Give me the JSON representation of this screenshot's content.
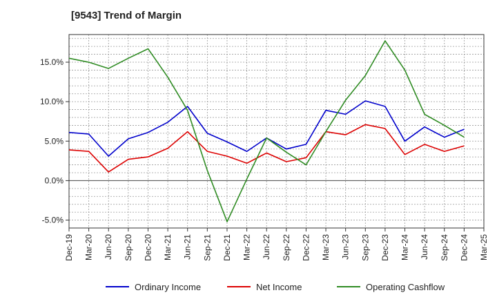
{
  "chart_data": {
    "type": "line",
    "title": "[9543]  Trend of Margin",
    "xlabel": "",
    "ylabel": "",
    "categories": [
      "Dec-19",
      "Mar-20",
      "Jun-20",
      "Sep-20",
      "Dec-20",
      "Mar-21",
      "Jun-21",
      "Sep-21",
      "Dec-21",
      "Mar-22",
      "Jun-22",
      "Sep-22",
      "Dec-22",
      "Mar-23",
      "Jun-23",
      "Sep-23",
      "Dec-23",
      "Mar-24",
      "Jun-24",
      "Sep-24",
      "Dec-24",
      "Mar-25"
    ],
    "y_ticks": [
      -5.0,
      0.0,
      5.0,
      10.0,
      15.0
    ],
    "y_tick_labels": [
      "-5.0%",
      "0.0%",
      "5.0%",
      "10.0%",
      "15.0%"
    ],
    "ylim": [
      -6.0,
      18.5
    ],
    "grid": true,
    "legend_position": "bottom",
    "series": [
      {
        "name": "Ordinary Income",
        "color": "#0000cc",
        "values": [
          6.1,
          5.9,
          3.1,
          5.3,
          6.1,
          7.4,
          9.4,
          6.0,
          4.9,
          3.7,
          5.4,
          4.0,
          4.6,
          8.9,
          8.4,
          10.1,
          9.4,
          5.0,
          6.8,
          5.5,
          6.5,
          null
        ]
      },
      {
        "name": "Net Income",
        "color": "#dd0000",
        "values": [
          3.9,
          3.7,
          1.1,
          2.7,
          3.0,
          4.1,
          6.2,
          3.7,
          3.1,
          2.2,
          3.5,
          2.4,
          2.9,
          6.2,
          5.8,
          7.1,
          6.6,
          3.3,
          4.6,
          3.7,
          4.4,
          null
        ]
      },
      {
        "name": "Operating Cashflow",
        "color": "#2e8b22",
        "values": [
          15.5,
          15.0,
          14.2,
          15.5,
          16.7,
          13.1,
          8.9,
          1.3,
          -5.2,
          0.2,
          5.4,
          3.6,
          2.0,
          6.2,
          10.2,
          13.3,
          17.7,
          14.0,
          8.4,
          7.0,
          5.5,
          null
        ]
      }
    ]
  }
}
